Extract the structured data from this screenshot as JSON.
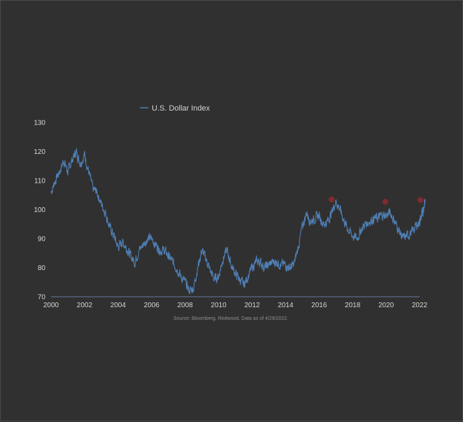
{
  "chart_data": {
    "type": "line",
    "title": "",
    "xlabel": "",
    "ylabel": "",
    "xlim": [
      2000,
      2022
    ],
    "ylim": [
      70,
      130
    ],
    "x_ticks": [
      "2000",
      "2002",
      "2004",
      "2006",
      "2008",
      "2010",
      "2012",
      "2014",
      "2016",
      "2018",
      "2020",
      "2022"
    ],
    "y_ticks": [
      "70",
      "80",
      "90",
      "100",
      "110",
      "120",
      "130"
    ],
    "legend": {
      "placement": "top-left",
      "entries": [
        "U.S. Dollar Index"
      ]
    },
    "grid": false,
    "source_note": "Source: Bloomberg, Redwood. Data as of 4/29/2022.",
    "colors": {
      "line": "#4f7fb5",
      "marker": "#8b2a2e",
      "axis": "#5a6a8a"
    },
    "series": [
      {
        "name": "U.S. Dollar Index",
        "x": [
          2000.0,
          2000.25,
          2000.5,
          2000.75,
          2001.0,
          2001.25,
          2001.5,
          2001.75,
          2002.0,
          2002.25,
          2002.5,
          2002.75,
          2003.0,
          2003.25,
          2003.5,
          2003.75,
          2004.0,
          2004.25,
          2004.5,
          2004.75,
          2005.0,
          2005.25,
          2005.5,
          2005.75,
          2006.0,
          2006.25,
          2006.5,
          2006.75,
          2007.0,
          2007.25,
          2007.5,
          2007.75,
          2008.0,
          2008.25,
          2008.5,
          2008.75,
          2009.0,
          2009.25,
          2009.5,
          2009.75,
          2010.0,
          2010.25,
          2010.5,
          2010.75,
          2011.0,
          2011.25,
          2011.5,
          2011.75,
          2012.0,
          2012.25,
          2012.5,
          2012.75,
          2013.0,
          2013.25,
          2013.5,
          2013.75,
          2014.0,
          2014.25,
          2014.5,
          2014.75,
          2015.0,
          2015.25,
          2015.5,
          2015.75,
          2016.0,
          2016.25,
          2016.5,
          2016.75,
          2017.0,
          2017.25,
          2017.5,
          2017.75,
          2018.0,
          2018.25,
          2018.5,
          2018.75,
          2019.0,
          2019.25,
          2019.5,
          2019.75,
          2020.0,
          2020.25,
          2020.5,
          2020.75,
          2021.0,
          2021.25,
          2021.5,
          2021.75,
          2022.0,
          2022.08,
          2022.17,
          2022.25,
          2022.33
        ],
        "values": [
          106,
          110,
          113,
          117,
          113,
          117,
          120,
          116,
          119,
          113,
          107,
          106,
          102,
          99,
          94,
          91,
          87,
          89,
          87,
          84,
          82,
          86,
          88,
          90,
          90,
          88,
          86,
          86,
          84,
          82,
          80,
          77,
          75,
          72,
          73,
          80,
          86,
          83,
          79,
          76,
          77,
          83,
          86,
          81,
          78,
          76,
          74,
          77,
          80,
          82,
          82,
          80,
          81,
          82,
          82,
          81,
          81,
          80,
          81,
          87,
          94,
          99,
          96,
          97,
          98,
          95,
          96,
          99,
          103,
          100,
          96,
          93,
          91,
          90,
          93,
          95,
          96,
          97,
          97,
          98,
          98,
          99,
          96,
          93,
          90,
          91,
          92,
          94,
          96,
          97,
          99,
          101,
          103
        ]
      }
    ],
    "highlight_points": [
      {
        "x": 2016.75,
        "y": 103.5
      },
      {
        "x": 2019.95,
        "y": 102.7
      },
      {
        "x": 2022.05,
        "y": 103.3
      }
    ]
  }
}
